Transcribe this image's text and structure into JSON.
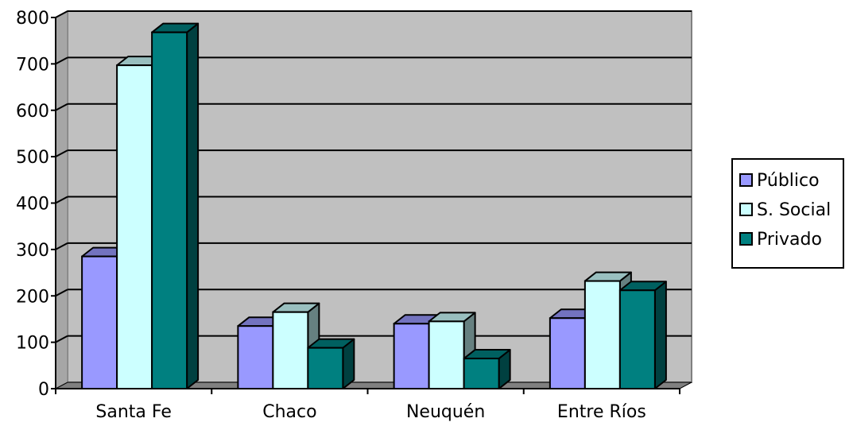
{
  "chart_data": {
    "type": "bar",
    "style": "3d-clustered-column",
    "categories": [
      "Santa Fe",
      "Chaco",
      "Neuquén",
      "Entre Ríos"
    ],
    "series": [
      {
        "name": "Público",
        "values": [
          285,
          135,
          140,
          152
        ],
        "color": "#9999ff"
      },
      {
        "name": "S. Social",
        "values": [
          697,
          165,
          145,
          232
        ],
        "color": "#ccffff"
      },
      {
        "name": "Privado",
        "values": [
          768,
          88,
          65,
          212
        ],
        "color": "#008080"
      }
    ],
    "ylim": [
      0,
      800
    ],
    "yticks": [
      0,
      100,
      200,
      300,
      400,
      500,
      600,
      700,
      800
    ],
    "grid": true,
    "legend_position": "right",
    "title": "",
    "xlabel": "",
    "ylabel": "",
    "colors": {
      "wall": "#c0c0c0",
      "floor": "#808080",
      "gridline": "#000000"
    }
  }
}
